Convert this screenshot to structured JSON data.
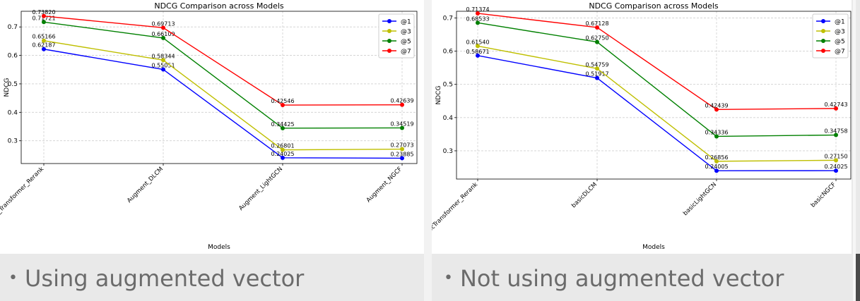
{
  "chart_data": [
    {
      "type": "line",
      "title": "NDCG Comparison across Models",
      "xlabel": "Models",
      "ylabel": "NDCG",
      "categories": [
        "Augment_Transformer_Rerank",
        "Augment_DLCM",
        "Augment_LightGCN",
        "Augment_NGCF"
      ],
      "ylim": [
        0.22,
        0.755
      ],
      "yticks": [
        0.3,
        0.4,
        0.5,
        0.6,
        0.7
      ],
      "grid": true,
      "legend": "top-right",
      "series": [
        {
          "name": "@1",
          "color": "#0000ff",
          "values": [
            0.62187,
            0.55051,
            0.24025,
            0.23885
          ],
          "labels": [
            "0.62187",
            "0.55051",
            "0.24025",
            "0.23885"
          ]
        },
        {
          "name": "@3",
          "color": "#bfbf00",
          "values": [
            0.65166,
            0.58344,
            0.26801,
            0.27073
          ],
          "labels": [
            "0.65166",
            "0.58344",
            "0.26801",
            "0.27073"
          ]
        },
        {
          "name": "@5",
          "color": "#008000",
          "values": [
            0.71721,
            0.66109,
            0.34425,
            0.34519
          ],
          "labels": [
            "0.71721",
            "0.66109",
            "0.34425",
            "0.34519"
          ]
        },
        {
          "name": "@7",
          "color": "#ff0000",
          "values": [
            0.7382,
            0.69713,
            0.42546,
            0.42639
          ],
          "labels": [
            "0.73820",
            "0.69713",
            "0.42546",
            "0.42639"
          ]
        }
      ]
    },
    {
      "type": "line",
      "title": "NDCG Comparison across Models",
      "xlabel": "Models",
      "ylabel": "NDCG",
      "categories": [
        "basicTransformer_Rerank",
        "basicDLCM",
        "basicLightGCN",
        "basicNGCF"
      ],
      "ylim": [
        0.215,
        0.72
      ],
      "yticks": [
        0.3,
        0.4,
        0.5,
        0.6,
        0.7
      ],
      "grid": true,
      "legend": "top-right",
      "series": [
        {
          "name": "@1",
          "color": "#0000ff",
          "values": [
            0.58671,
            0.51917,
            0.24005,
            0.24025
          ],
          "labels": [
            "0.58671",
            "0.51917",
            "0.24005",
            "0.24025"
          ]
        },
        {
          "name": "@3",
          "color": "#bfbf00",
          "values": [
            0.6154,
            0.54759,
            0.26856,
            0.2715
          ],
          "labels": [
            "0.61540",
            "0.54759",
            "0.26856",
            "0.27150"
          ]
        },
        {
          "name": "@5",
          "color": "#008000",
          "values": [
            0.68533,
            0.6275,
            0.34336,
            0.34758
          ],
          "labels": [
            "0.68533",
            "0.62750",
            "0.34336",
            "0.34758"
          ]
        },
        {
          "name": "@7",
          "color": "#ff0000",
          "values": [
            0.71374,
            0.67128,
            0.42439,
            0.42743
          ],
          "labels": [
            "0.71374",
            "0.67128",
            "0.42439",
            "0.42743"
          ]
        }
      ]
    }
  ],
  "captions": {
    "bullet": "•",
    "left": "Using augmented vector",
    "right": "Not using augmented vector"
  }
}
